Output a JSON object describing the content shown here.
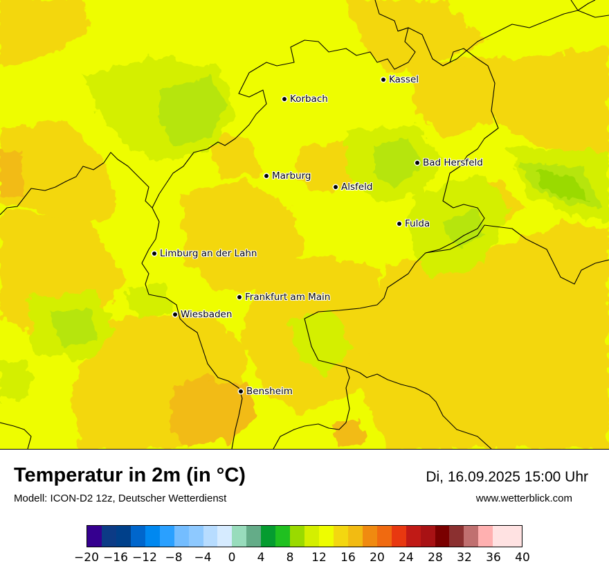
{
  "header": {
    "title": "Temperatur in 2m (in °C)",
    "subtitle": "Modell: ICON-D2 12z, Deutscher Wetterdienst",
    "datetime": "Di, 16.09.2025 15:00 Uhr",
    "website": "www.wetterblick.com"
  },
  "colors": {
    "base_field": "#eefd00",
    "warm_field": "#f3d710",
    "warmer_field": "#f2bb12",
    "cool_field": "#d4ef00",
    "cooler_field": "#b6e50c",
    "border": "#000000"
  },
  "cities": [
    {
      "name": "Kassel"
    },
    {
      "name": "Korbach"
    },
    {
      "name": "Bad Hersfeld"
    },
    {
      "name": "Marburg"
    },
    {
      "name": "Alsfeld"
    },
    {
      "name": "Fulda"
    },
    {
      "name": "Limburg an der Lahn"
    },
    {
      "name": "Frankfurt am Main"
    },
    {
      "name": "Wiesbaden"
    },
    {
      "name": "Bensheim"
    }
  ],
  "legend": {
    "min": -20,
    "max": 40,
    "step": 2,
    "tick_labels": [
      "−20",
      "−16",
      "−12",
      "−8",
      "−4",
      "0",
      "4",
      "8",
      "12",
      "16",
      "20",
      "24",
      "28",
      "32",
      "36",
      "40"
    ],
    "segment_colors": [
      "#35008f",
      "#0c3b86",
      "#00408a",
      "#0066cc",
      "#0088f0",
      "#2aa0ff",
      "#74bdff",
      "#8ec9ff",
      "#b7dcff",
      "#d6ebff",
      "#98dcbc",
      "#64ac88",
      "#059c30",
      "#20c020",
      "#9ada00",
      "#d4ef00",
      "#eefd00",
      "#f3d710",
      "#f2bb12",
      "#f08a10",
      "#f06a10",
      "#e83810",
      "#c01a16",
      "#a81214",
      "#7a0000",
      "#8b3030",
      "#c07070",
      "#ffb0b0",
      "#ffe2e2",
      "#ffe2e2"
    ]
  }
}
